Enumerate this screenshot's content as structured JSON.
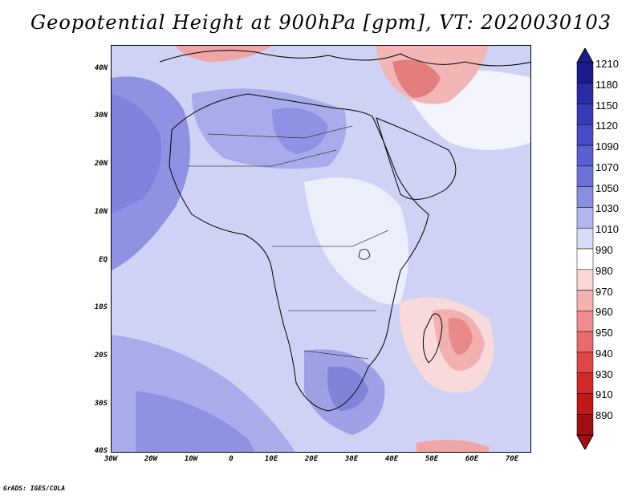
{
  "title": "Geopotential Height at 900hPa [gpm], VT: 2020030103",
  "credit": "GrADS: IGES/COLA",
  "y_ticks": [
    "40N",
    "30N",
    "20N",
    "10N",
    "EQ",
    "10S",
    "20S",
    "30S",
    "40S"
  ],
  "x_ticks": [
    "30W",
    "20W",
    "10W",
    "0",
    "10E",
    "20E",
    "30E",
    "40E",
    "50E",
    "60E",
    "70E"
  ],
  "colorbar": {
    "labels": [
      "1210",
      "1180",
      "1150",
      "1120",
      "1090",
      "1070",
      "1050",
      "1030",
      "1010",
      "990",
      "980",
      "970",
      "960",
      "950",
      "940",
      "930",
      "910",
      "890"
    ],
    "colors": [
      "#1e1a8c",
      "#2b2ba6",
      "#3a3ab8",
      "#4a4ac6",
      "#5a5ed0",
      "#6e72d8",
      "#8a8ee0",
      "#b3b6ec",
      "#d8dbf6",
      "#ffffff",
      "#fbd6d6",
      "#f5b2b2",
      "#ef8e8e",
      "#e86a6a",
      "#df4646",
      "#d22a2a",
      "#c01818",
      "#a01010"
    ]
  }
}
